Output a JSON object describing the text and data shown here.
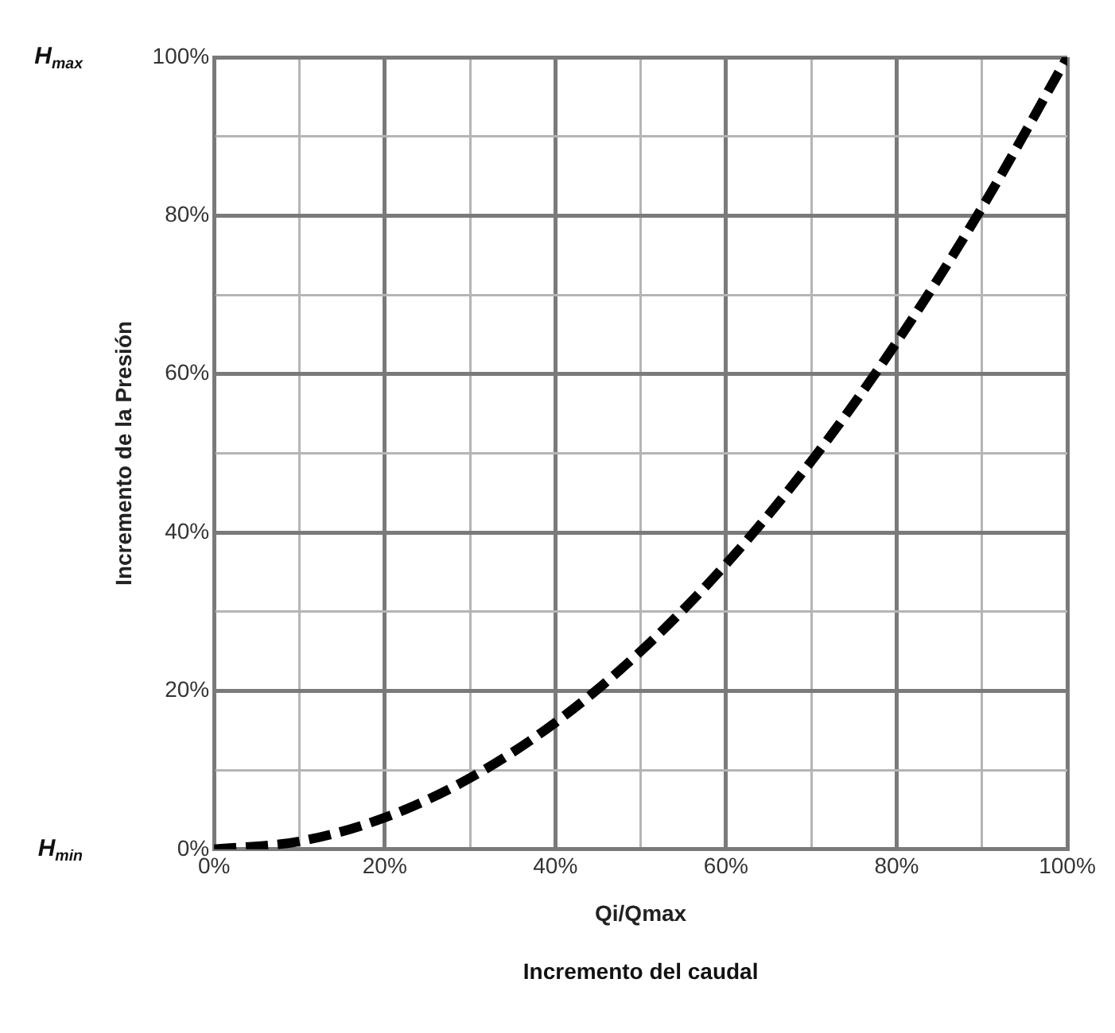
{
  "chart_data": {
    "type": "line",
    "xlabel": "Qi/Qmax",
    "ylabel": "Incremento de la Presión",
    "x": [
      0,
      10,
      20,
      30,
      40,
      50,
      60,
      70,
      80,
      90,
      100
    ],
    "series": [
      {
        "color": "#000000",
        "values": [
          0,
          1,
          4,
          9,
          16,
          25,
          36,
          49,
          64,
          81,
          100
        ]
      }
    ],
    "xlim": [
      0,
      100
    ],
    "ylim": [
      0,
      100
    ],
    "xticks": [
      {
        "value": 0,
        "label": "0%"
      },
      {
        "value": 10,
        "label": null
      },
      {
        "value": 20,
        "label": "20%"
      },
      {
        "value": 30,
        "label": null
      },
      {
        "value": 40,
        "label": "40%"
      },
      {
        "value": 50,
        "label": null
      },
      {
        "value": 60,
        "label": "60%"
      },
      {
        "value": 70,
        "label": null
      },
      {
        "value": 80,
        "label": "80%"
      },
      {
        "value": 90,
        "label": null
      },
      {
        "value": 100,
        "label": "100%"
      }
    ],
    "yticks": [
      {
        "value": 0,
        "label": "0%"
      },
      {
        "value": 10,
        "label": null
      },
      {
        "value": 20,
        "label": "20%"
      },
      {
        "value": 30,
        "label": null
      },
      {
        "value": 40,
        "label": "40%"
      },
      {
        "value": 50,
        "label": null
      },
      {
        "value": 60,
        "label": "60%"
      },
      {
        "value": 70,
        "label": null
      },
      {
        "value": 80,
        "label": "80%"
      },
      {
        "value": 90,
        "label": null
      },
      {
        "value": 100,
        "label": "100%"
      }
    ],
    "grid": true,
    "legend": false,
    "marker": "none",
    "line_style": "dashed",
    "annotations": [
      "H$_{max}$",
      "H$_{min}$",
      "Incremento del caudal"
    ]
  }
}
